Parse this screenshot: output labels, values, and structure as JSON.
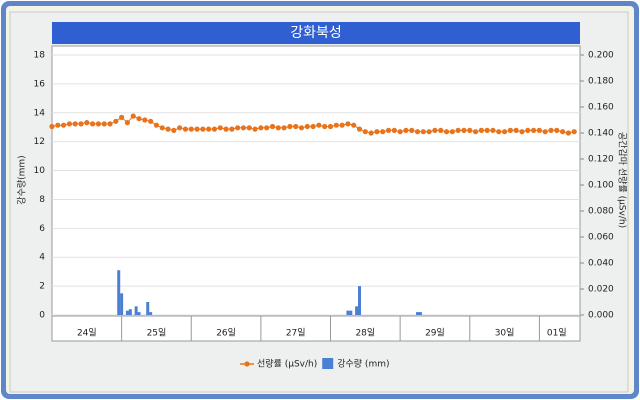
{
  "chart_data": {
    "type": "combo",
    "title": "강화북성",
    "ylabel": "강수량(mm)",
    "y2label": "공간감마 선량률 (μSv/h)",
    "xlim": [
      0,
      182
    ],
    "xticks": [
      {
        "value": 12,
        "label": "24일"
      },
      {
        "value": 36,
        "label": "25일"
      },
      {
        "value": 60,
        "label": "26일"
      },
      {
        "value": 84,
        "label": "27일"
      },
      {
        "value": 108,
        "label": "28일"
      },
      {
        "value": 132,
        "label": "29일"
      },
      {
        "value": 156,
        "label": "30일"
      },
      {
        "value": 174,
        "label": "01일"
      }
    ],
    "xdividers": [
      0,
      24,
      48,
      72,
      96,
      120,
      144,
      168,
      182
    ],
    "ylim": [
      0,
      18
    ],
    "yticks": [
      0,
      2,
      4,
      6,
      8,
      10,
      12,
      14,
      16,
      18
    ],
    "y2lim": [
      0,
      0.2
    ],
    "y2ticks": [
      {
        "value": 0,
        "label": "0.000"
      },
      {
        "value": 0.02,
        "label": "0.020"
      },
      {
        "value": 0.04,
        "label": "0.040"
      },
      {
        "value": 0.06,
        "label": "0.060"
      },
      {
        "value": 0.08,
        "label": "0.080"
      },
      {
        "value": 0.1,
        "label": "0.100"
      },
      {
        "value": 0.12,
        "label": "0.120"
      },
      {
        "value": 0.14,
        "label": "0.140"
      },
      {
        "value": 0.16,
        "label": "0.160"
      },
      {
        "value": 0.18,
        "label": "0.180"
      },
      {
        "value": 0.2,
        "label": "0.200"
      }
    ],
    "grid": true,
    "legend": "bottom",
    "series": [
      {
        "name": "선량률 (μSv/h)",
        "type": "line",
        "axis": "y2",
        "color": "#e8731a",
        "x": [
          0,
          2,
          4,
          6,
          8,
          10,
          12,
          14,
          16,
          18,
          20,
          22,
          24,
          26,
          28,
          30,
          32,
          34,
          36,
          38,
          40,
          42,
          44,
          46,
          48,
          50,
          52,
          54,
          56,
          58,
          60,
          62,
          64,
          66,
          68,
          70,
          72,
          74,
          76,
          78,
          80,
          82,
          84,
          86,
          88,
          90,
          92,
          94,
          96,
          98,
          100,
          102,
          104,
          106,
          108,
          110,
          112,
          114,
          116,
          118,
          120,
          122,
          124,
          126,
          128,
          130,
          132,
          134,
          136,
          138,
          140,
          142,
          144,
          146,
          148,
          150,
          152,
          154,
          156,
          158,
          160,
          162,
          164,
          166,
          168,
          170,
          172,
          174,
          176,
          178,
          180
        ],
        "values": [
          0.145,
          0.146,
          0.146,
          0.147,
          0.147,
          0.147,
          0.148,
          0.147,
          0.147,
          0.147,
          0.147,
          0.149,
          0.152,
          0.148,
          0.153,
          0.151,
          0.15,
          0.149,
          0.146,
          0.144,
          0.143,
          0.142,
          0.144,
          0.143,
          0.143,
          0.143,
          0.143,
          0.143,
          0.143,
          0.144,
          0.143,
          0.143,
          0.144,
          0.144,
          0.144,
          0.143,
          0.144,
          0.144,
          0.145,
          0.144,
          0.144,
          0.145,
          0.145,
          0.144,
          0.145,
          0.145,
          0.146,
          0.145,
          0.145,
          0.146,
          0.146,
          0.147,
          0.146,
          0.143,
          0.141,
          0.14,
          0.141,
          0.141,
          0.142,
          0.142,
          0.141,
          0.142,
          0.142,
          0.141,
          0.141,
          0.141,
          0.142,
          0.142,
          0.141,
          0.141,
          0.142,
          0.142,
          0.142,
          0.141,
          0.142,
          0.142,
          0.142,
          0.141,
          0.141,
          0.142,
          0.142,
          0.141,
          0.142,
          0.142,
          0.142,
          0.141,
          0.142,
          0.142,
          0.141,
          0.14,
          0.141
        ]
      },
      {
        "name": "강수량 (mm)",
        "type": "bar",
        "axis": "y",
        "color": "#4a7fd4",
        "x": [
          23,
          24,
          26,
          27,
          29,
          30,
          33,
          34,
          102,
          103,
          105,
          106,
          126,
          127
        ],
        "values": [
          3.1,
          1.5,
          0.3,
          0.4,
          0.6,
          0.2,
          0.9,
          0.2,
          0.3,
          0.3,
          0.6,
          2.0,
          0.2,
          0.2
        ]
      }
    ]
  }
}
